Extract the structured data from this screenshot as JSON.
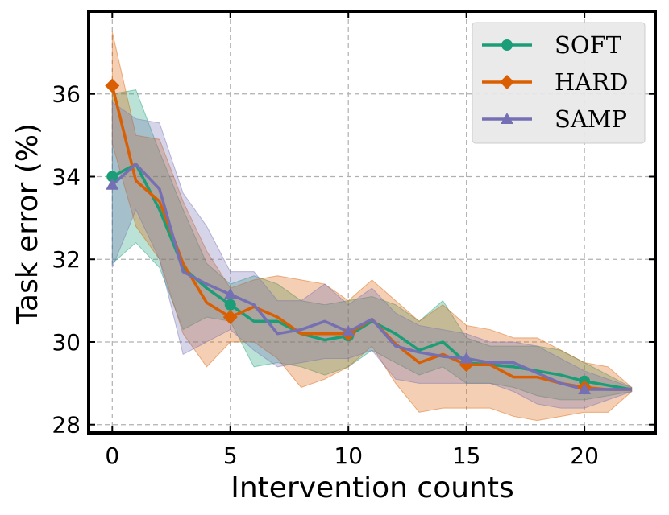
{
  "chart_data": {
    "type": "line",
    "title": "",
    "xlabel": "Intervention counts",
    "ylabel": "Task error (%)",
    "xlim": [
      -1,
      23
    ],
    "ylim": [
      27.8,
      38.0
    ],
    "xticks": [
      0,
      5,
      10,
      15,
      20
    ],
    "yticks": [
      28,
      30,
      32,
      34,
      36
    ],
    "grid": true,
    "legend_position": "top-right",
    "x": [
      0,
      1,
      2,
      3,
      4,
      5,
      6,
      7,
      8,
      9,
      10,
      11,
      12,
      13,
      14,
      15,
      16,
      17,
      18,
      19,
      20,
      21,
      22
    ],
    "marker_x": [
      0,
      5,
      10,
      15,
      20
    ],
    "series": [
      {
        "name": "SOFT",
        "color": "#1b9e77",
        "marker": "circle",
        "values": [
          34.0,
          34.3,
          33.2,
          31.8,
          31.3,
          30.9,
          30.5,
          30.5,
          30.2,
          30.05,
          30.15,
          30.5,
          30.2,
          29.8,
          30.0,
          29.5,
          29.45,
          29.4,
          29.3,
          29.2,
          29.05,
          28.95,
          28.85
        ],
        "lower": [
          31.9,
          32.4,
          31.8,
          30.3,
          30.6,
          30.5,
          29.4,
          29.5,
          29.4,
          29.2,
          29.4,
          29.8,
          29.5,
          29.2,
          29.4,
          29.0,
          29.0,
          28.9,
          28.7,
          28.6,
          28.6,
          28.7,
          28.8
        ],
        "upper": [
          36.0,
          36.1,
          34.6,
          33.2,
          31.9,
          31.4,
          31.6,
          31.4,
          31.0,
          30.9,
          31.0,
          31.1,
          30.9,
          30.5,
          31.0,
          30.1,
          29.9,
          29.9,
          29.9,
          29.8,
          29.5,
          29.2,
          28.9
        ]
      },
      {
        "name": "HARD",
        "color": "#d95f02",
        "marker": "diamond",
        "values": [
          36.2,
          33.9,
          33.4,
          31.9,
          30.95,
          30.6,
          30.85,
          30.6,
          30.2,
          30.2,
          30.2,
          30.55,
          29.95,
          29.5,
          29.7,
          29.45,
          29.45,
          29.15,
          29.15,
          29.0,
          28.9,
          28.85,
          28.85
        ],
        "lower": [
          34.8,
          32.8,
          32.0,
          30.2,
          29.4,
          30.0,
          30.0,
          29.6,
          28.9,
          29.1,
          29.4,
          29.9,
          29.0,
          28.3,
          28.4,
          28.4,
          28.4,
          28.2,
          28.1,
          28.2,
          28.3,
          28.3,
          28.8
        ],
        "upper": [
          37.5,
          35.0,
          34.9,
          33.4,
          32.2,
          31.3,
          31.5,
          31.6,
          31.5,
          31.4,
          31.0,
          31.5,
          31.0,
          30.5,
          30.9,
          30.4,
          30.3,
          30.1,
          30.1,
          29.8,
          29.5,
          29.4,
          28.9
        ]
      },
      {
        "name": "SAMP",
        "color": "#7570b3",
        "marker": "triangle",
        "values": [
          33.8,
          34.3,
          33.7,
          31.7,
          31.4,
          31.15,
          30.9,
          30.2,
          30.3,
          30.5,
          30.25,
          30.55,
          29.9,
          29.75,
          29.65,
          29.6,
          29.5,
          29.5,
          29.25,
          29.0,
          28.85,
          28.85,
          28.85
        ],
        "lower": [
          31.8,
          33.2,
          32.0,
          29.7,
          30.0,
          30.3,
          29.8,
          29.4,
          29.5,
          29.6,
          29.6,
          29.8,
          29.1,
          29.0,
          29.0,
          29.0,
          29.0,
          28.8,
          28.5,
          28.4,
          28.4,
          28.6,
          28.8
        ],
        "upper": [
          35.8,
          35.4,
          35.3,
          33.6,
          32.8,
          31.7,
          31.7,
          31.0,
          31.0,
          31.4,
          30.9,
          31.3,
          30.7,
          30.4,
          30.3,
          30.2,
          30.0,
          30.0,
          29.9,
          29.6,
          29.3,
          29.1,
          28.9
        ]
      }
    ]
  }
}
